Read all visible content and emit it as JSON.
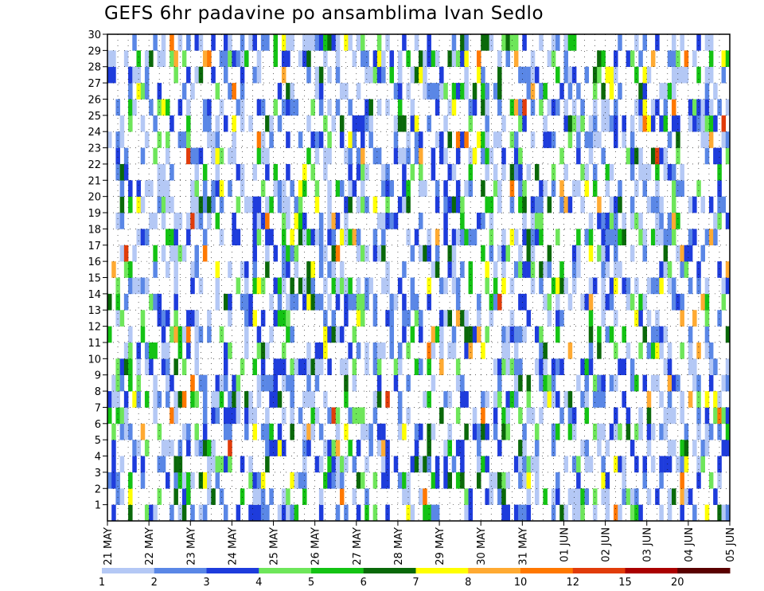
{
  "chart_data": {
    "type": "heatmap",
    "title": "GEFS 6hr padavine po ansamblima Ivan Sedlo",
    "xlabel": "",
    "ylabel": "",
    "x_ticks": [
      "21 MAY",
      "22 MAY",
      "23 MAY",
      "24 MAY",
      "25 MAY",
      "26 MAY",
      "27 MAY",
      "28 MAY",
      "29 MAY",
      "30 MAY",
      "31 MAY",
      "01 JUN",
      "02 JUN",
      "03 JUN",
      "04 JUN",
      "05 JUN"
    ],
    "y_ticks": [
      1,
      2,
      3,
      4,
      5,
      6,
      7,
      8,
      9,
      10,
      11,
      12,
      13,
      14,
      15,
      16,
      17,
      18,
      19,
      20,
      21,
      22,
      23,
      24,
      25,
      26,
      27,
      28,
      29,
      30
    ],
    "ylim": [
      0,
      30
    ],
    "grid": true,
    "legend": {
      "position": "bottom",
      "levels": [
        "1",
        "2",
        "3",
        "4",
        "5",
        "6",
        "7",
        "8",
        "10",
        "12",
        "15",
        "20"
      ],
      "colors": [
        "#b4c8f5",
        "#5a87e6",
        "#1e3cdc",
        "#6ee65a",
        "#14c314",
        "#0a690a",
        "#ffff00",
        "#ffaa32",
        "#ff7800",
        "#e13c0a",
        "#aa0000",
        "#5a0000"
      ]
    },
    "columns_per_day": 4,
    "start_day_label": "21 MAY",
    "rows": [
      [
        0,
        0,
        0,
        0,
        0,
        0,
        0,
        0,
        0,
        0,
        2,
        0,
        0,
        0,
        0,
        2,
        2,
        0,
        0,
        0,
        0,
        0,
        0,
        0,
        0,
        0,
        0,
        0,
        0,
        0,
        2,
        0,
        0,
        0,
        0,
        0,
        0,
        0,
        0,
        0,
        0,
        0,
        0,
        0,
        0,
        0,
        0,
        0,
        0,
        0,
        0,
        1,
        0,
        0,
        0,
        0,
        0,
        0,
        0,
        0,
        0,
        0,
        0,
        0,
        0,
        0,
        0,
        0,
        0,
        0,
        0,
        0,
        1,
        0,
        0,
        0,
        0,
        0,
        0,
        0,
        0,
        0,
        0,
        0,
        0,
        0,
        0,
        0,
        0,
        0,
        0,
        0,
        0,
        0,
        0,
        0,
        0,
        0,
        0,
        0,
        0,
        0,
        0,
        2,
        0,
        0,
        0,
        0,
        0,
        0,
        0,
        0,
        0,
        0,
        0,
        0,
        0,
        0,
        0,
        0,
        0,
        0,
        0,
        0,
        0,
        0,
        0,
        0,
        0,
        0,
        0,
        0,
        0,
        0,
        0,
        0,
        0,
        0,
        0,
        0,
        0,
        0,
        0,
        0,
        0,
        0,
        0,
        0,
        0,
        0
      ],
      [
        0,
        0,
        0,
        0,
        0,
        0,
        0,
        0,
        0,
        0,
        2,
        0,
        0,
        2,
        2,
        3,
        0,
        0,
        0,
        0,
        4,
        4,
        0,
        0,
        0,
        0,
        0,
        0,
        0,
        6,
        0,
        0,
        0,
        0,
        0,
        0,
        0,
        0,
        0,
        0,
        0,
        0,
        0,
        0,
        0,
        0,
        0,
        0,
        0,
        0,
        0,
        0,
        0,
        0,
        0,
        0,
        0,
        0,
        0,
        0,
        0,
        0,
        0,
        0,
        5,
        5,
        5,
        0,
        0,
        0,
        0,
        0,
        0,
        0,
        0,
        0,
        0,
        0,
        0,
        0,
        0,
        0,
        0,
        0,
        0,
        0,
        0,
        0,
        0,
        0,
        0,
        0,
        0,
        0,
        0,
        0,
        0,
        0,
        0,
        0,
        0,
        0,
        0,
        0,
        0,
        0,
        0,
        0,
        0,
        0,
        0,
        0,
        0,
        0,
        0,
        0,
        0,
        0,
        0,
        0,
        0,
        0,
        0,
        0,
        0,
        0,
        0,
        0,
        0,
        0,
        0,
        0,
        0,
        0,
        0,
        0,
        0,
        0,
        0,
        0,
        0,
        0,
        0,
        0,
        0,
        0,
        0,
        0,
        0,
        0
      ],
      [
        0,
        0,
        0,
        0,
        0,
        0,
        0,
        0,
        0,
        0,
        0,
        0,
        0,
        4,
        3,
        0,
        0,
        0,
        0,
        0,
        0,
        0,
        0,
        0,
        0,
        0,
        0,
        0,
        0,
        0,
        0,
        0,
        0,
        0,
        0,
        0,
        0,
        0,
        0,
        0,
        0,
        0,
        0,
        0,
        0,
        0,
        0,
        0,
        0,
        0,
        0,
        0,
        0,
        0,
        0,
        0,
        0,
        0,
        0,
        0,
        0,
        0,
        0,
        0,
        0,
        0,
        0,
        0,
        0,
        0,
        0,
        0,
        0,
        0,
        0,
        0,
        0,
        0,
        0,
        0,
        0,
        0,
        0,
        0,
        0,
        0,
        0,
        0,
        0,
        0,
        0,
        0,
        0,
        0,
        0,
        0,
        0,
        0,
        0,
        0,
        0,
        0,
        0,
        0,
        0,
        0,
        0,
        0,
        0,
        0,
        0,
        0,
        0,
        0,
        0,
        0,
        0,
        0,
        0,
        0,
        0,
        0,
        0,
        0,
        0,
        0,
        0,
        0,
        0,
        0,
        0,
        0,
        0,
        0,
        0,
        0,
        0,
        0,
        0,
        0,
        0,
        0,
        0,
        0,
        0,
        0,
        0,
        0,
        0,
        0
      ],
      [
        0,
        0,
        0,
        0,
        0,
        0,
        0,
        0,
        0,
        0,
        0,
        0,
        0,
        4,
        0,
        0,
        0,
        0,
        0,
        0,
        0,
        0,
        0,
        0,
        0,
        0,
        0,
        0,
        0,
        0,
        0,
        0,
        0,
        0,
        0,
        0,
        0,
        0,
        0,
        0,
        0,
        0,
        0,
        0,
        0,
        0,
        0,
        0,
        0,
        0,
        0,
        0,
        0,
        0,
        0,
        0,
        0,
        0,
        0,
        0,
        0,
        0,
        0,
        0,
        0,
        0,
        0,
        0,
        0,
        0,
        0,
        0,
        0,
        0,
        0,
        0,
        0,
        0,
        0,
        0,
        0,
        0,
        0,
        0,
        0,
        0,
        0,
        0,
        0,
        0,
        0,
        0,
        0,
        0,
        0,
        0,
        0,
        0,
        0,
        0,
        0,
        0,
        0,
        0,
        0,
        0,
        0,
        0,
        0,
        0,
        0,
        0,
        0,
        0,
        0,
        0,
        0,
        0,
        0,
        0,
        0,
        0,
        0,
        0,
        0,
        0,
        0,
        0,
        0,
        0,
        0,
        0,
        0,
        0,
        0,
        0,
        0,
        0,
        0,
        0,
        0,
        0,
        0,
        0,
        0,
        0,
        0,
        0,
        0,
        0
      ],
      [
        0,
        0,
        0,
        0,
        0,
        0,
        0,
        0,
        0,
        0,
        0,
        0,
        0,
        4,
        0,
        0,
        0,
        0,
        0,
        0,
        0,
        0,
        0,
        0,
        0,
        0,
        0,
        0,
        0,
        0,
        0,
        0,
        0,
        0,
        0,
        0,
        0,
        0,
        0,
        0,
        0,
        0,
        0,
        0,
        0,
        0,
        0,
        0,
        0,
        0,
        0,
        0,
        0,
        0,
        0,
        0,
        0,
        0,
        0,
        0,
        0,
        0,
        0,
        0,
        0,
        0,
        0,
        0,
        0,
        0,
        0,
        0,
        0,
        0,
        0,
        0,
        0,
        0,
        0,
        0,
        0,
        0,
        0,
        0,
        0,
        0,
        0,
        0,
        0,
        0,
        0,
        0,
        0,
        0,
        0,
        0,
        0,
        0,
        0,
        0,
        0,
        0,
        0,
        0,
        0,
        0,
        0,
        0,
        0,
        0,
        0,
        0,
        0,
        0,
        0,
        0,
        0,
        0,
        0,
        0,
        0,
        0,
        0,
        0,
        0,
        0,
        0,
        0,
        0,
        0,
        0,
        0,
        0,
        0,
        0,
        0,
        0,
        0,
        0,
        0,
        0,
        0,
        0,
        0,
        0,
        0,
        0,
        0,
        0,
        0
      ]
    ],
    "cell_grid_layout": {
      "n_cols": 150,
      "rows_from_top": [
        ".3..3.2..3.2.1.1.11..3.......2.1..............1.1.......................9...................2...22..11.........2.2.........2.2..........3....1....2..........",
        "...62..3.......6.3.2..3..1.3.....3.......1....2.4..3..3...3.......3..3.53.......3...3.6..3..1...3...3.3..3..3..4..3...6..3.........2.3.8..........2.",
        "......2.......16.2.2..3..1.......2....2..3.1...3.......4..2.....4..3....53.3.......3..4.2..2..3....2..2...6.....5.3.....2....22.2.2......1.......2.8",
        "......25........35.3.....2.....3...2...3.......2.3..2.....4..3.3.2.....................5.3.....4.4...4...12.......4..3..3....11.......................6",
        "...1...3.5......54.5..3...3..4.3.....3.....3..36...6...3.3....3.....66.4.2..6...66.6...5.4...6.3....4..43......3.",
        "......3.......563.....3..3....3.3.......2.......3...3..3.....3.5.6.....56...3..6....5.3.8...53.3..5..........36..."
      ]
    }
  }
}
